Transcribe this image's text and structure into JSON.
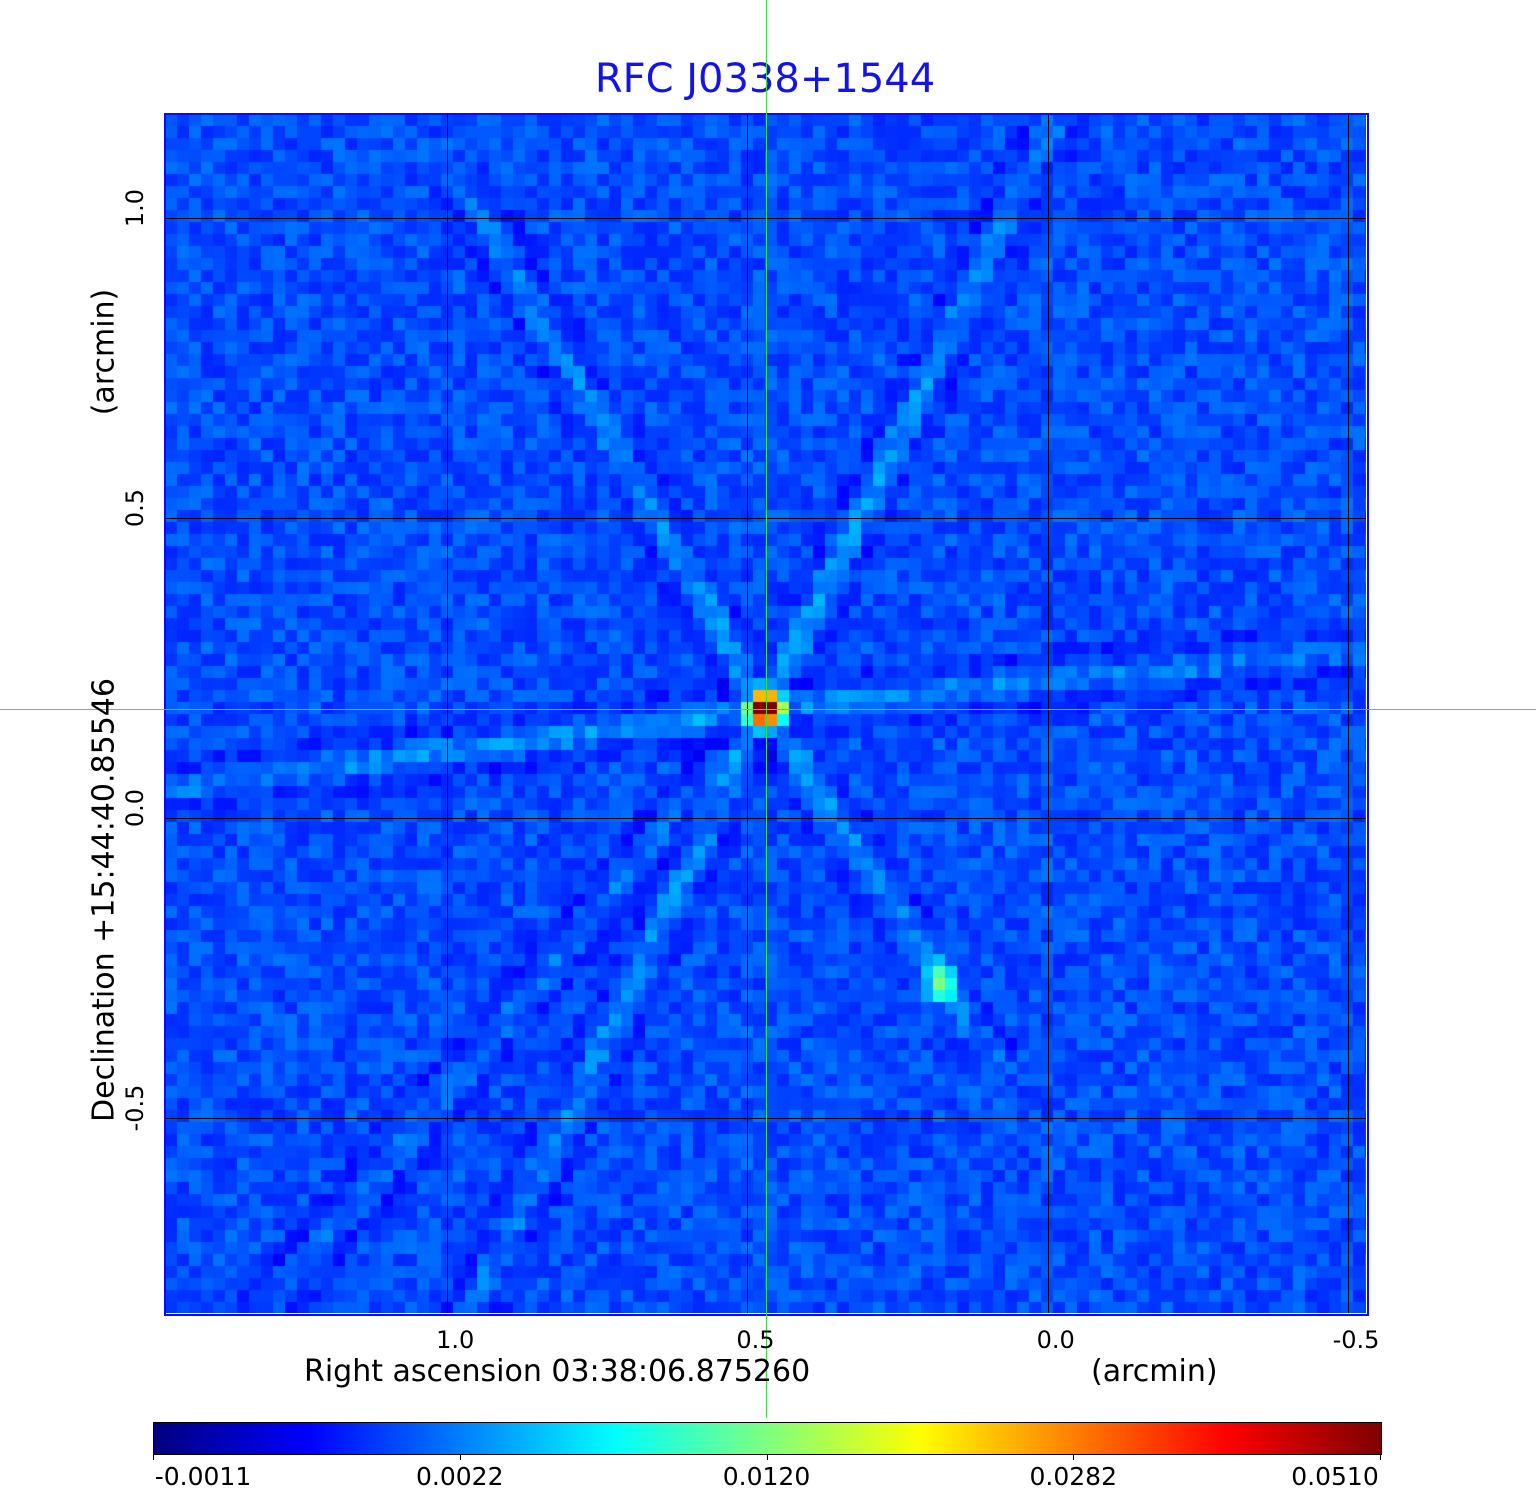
{
  "chart_data": {
    "type": "heatmap",
    "title": "RFC J0338+1544",
    "xlabel": "Right ascension  03:38:06.875260",
    "xlabel_unit": "(arcmin)",
    "ylabel": "Declination  +15:44:40.85546",
    "ylabel_unit": "(arcmin)",
    "xlim": [
      1.47,
      -0.53
    ],
    "ylim": [
      -0.825,
      1.173
    ],
    "x_ticks": [
      {
        "value": 1.0,
        "label": "1.0"
      },
      {
        "value": 0.5,
        "label": "0.5"
      },
      {
        "value": 0.0,
        "label": "0.0"
      },
      {
        "value": -0.5,
        "label": "-0.5"
      }
    ],
    "y_ticks": [
      {
        "value": 1.0,
        "label": "1.0"
      },
      {
        "value": 0.5,
        "label": "0.5"
      },
      {
        "value": 0.0,
        "label": "0.0"
      },
      {
        "value": -0.5,
        "label": "-0.5"
      }
    ],
    "grid": true,
    "crosshair": {
      "x": 0.47,
      "y": 0.182
    },
    "sources": [
      {
        "x": 0.47,
        "y": 0.182,
        "peak": 0.051
      },
      {
        "x": 0.18,
        "y": -0.27,
        "peak": 0.004
      }
    ],
    "colormap": "jet",
    "colorbar": {
      "placement": "bottom",
      "ticks": [
        "-0.0011",
        "0.0022",
        "0.0120",
        "0.0282",
        "0.0510"
      ],
      "range": [
        -0.0011,
        0.051
      ]
    },
    "colors": {
      "title": "#1414e6",
      "crosshair": "#3ce03c",
      "frame": "#0a0aff"
    }
  }
}
